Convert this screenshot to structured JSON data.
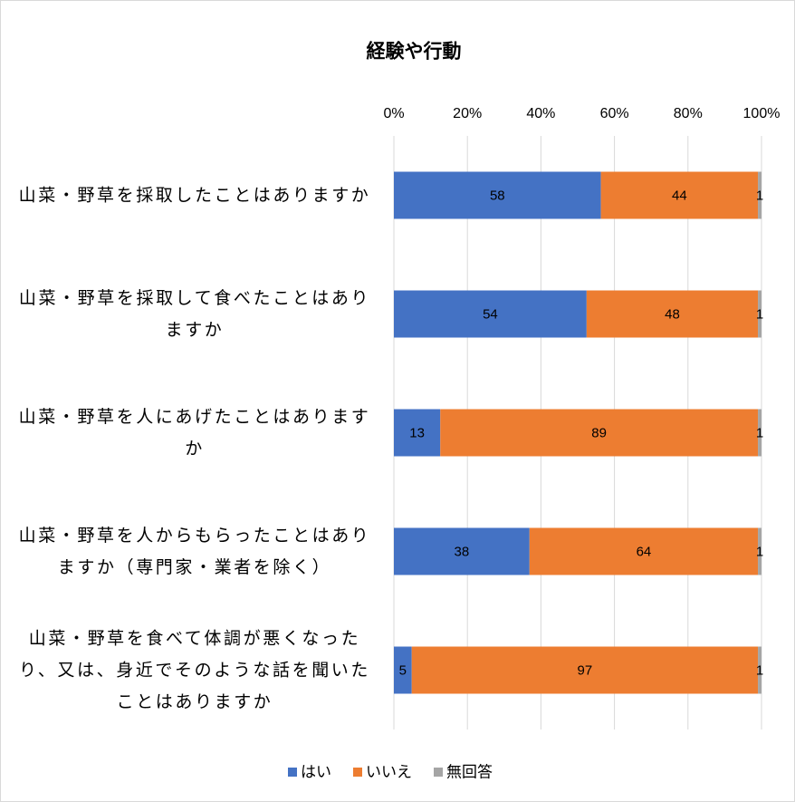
{
  "chart_data": {
    "type": "bar100",
    "title": "経験や行動",
    "categories": [
      "山菜・野草を採取したことはありますか",
      "山菜・野草を採取して食べたことはありますか",
      "山菜・野草を人にあげたことはありますか",
      "山菜・野草を人からもらったことはありますか（専門家・業者を除く）",
      "山菜・野草を食べて体調が悪くなったり、又は、身近でそのような話を聞いたことはありますか"
    ],
    "series": [
      {
        "name": "はい",
        "color": "#4472c4",
        "values": [
          58,
          54,
          13,
          38,
          5
        ]
      },
      {
        "name": "いいえ",
        "color": "#ed7d31",
        "values": [
          44,
          48,
          89,
          64,
          97
        ]
      },
      {
        "name": "無回答",
        "color": "#a5a5a5",
        "values": [
          1,
          1,
          1,
          1,
          1
        ]
      }
    ],
    "xlim": [
      0,
      100
    ],
    "xticks": [
      {
        "value": 0,
        "label": "0%"
      },
      {
        "value": 20,
        "label": "20%"
      },
      {
        "value": 40,
        "label": "40%"
      },
      {
        "value": 60,
        "label": "60%"
      },
      {
        "value": 80,
        "label": "80%"
      },
      {
        "value": 100,
        "label": "100%"
      }
    ],
    "grid": true,
    "legend": "bottom"
  }
}
